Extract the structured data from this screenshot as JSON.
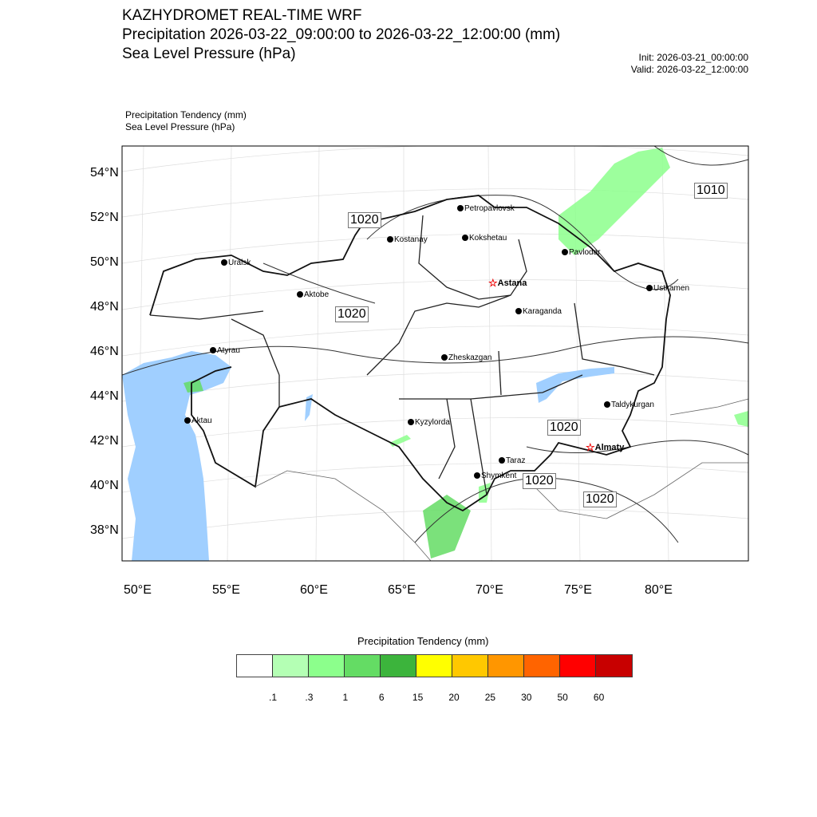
{
  "title": {
    "line1": "KAZHYDROMET REAL-TIME WRF",
    "line2": "Precipitation 2026-03-22_09:00:00 to 2026-03-22_12:00:00 (mm)",
    "line3": "Sea Level Pressure  (hPa)",
    "init": "Init: 2026-03-21_00:00:00",
    "valid": "Valid: 2026-03-22_12:00:00"
  },
  "subtitle": {
    "field1": "Precipitation Tendency   (mm)",
    "field2": "Sea Level Pressure   (hPa)"
  },
  "axes": {
    "lat_labels": [
      "54°N",
      "52°N",
      "50°N",
      "48°N",
      "46°N",
      "44°N",
      "42°N",
      "40°N",
      "38°N"
    ],
    "lon_labels": [
      "50°E",
      "55°E",
      "60°E",
      "65°E",
      "70°E",
      "75°E",
      "80°E"
    ]
  },
  "cities": [
    {
      "name": "Petropavlovsk",
      "capital": false
    },
    {
      "name": "Kokshetau",
      "capital": false
    },
    {
      "name": "Kostanay",
      "capital": false
    },
    {
      "name": "Pavlodar",
      "capital": false
    },
    {
      "name": "Uralsk",
      "capital": false
    },
    {
      "name": "Astana",
      "capital": true
    },
    {
      "name": "Aktobe",
      "capital": false
    },
    {
      "name": "Ustkamen",
      "capital": false
    },
    {
      "name": "Karaganda",
      "capital": false
    },
    {
      "name": "Atyrau",
      "capital": false
    },
    {
      "name": "Zheskazgan",
      "capital": false
    },
    {
      "name": "Aktau",
      "capital": false
    },
    {
      "name": "Taldykurgan",
      "capital": false
    },
    {
      "name": "Kyzylorda",
      "capital": false
    },
    {
      "name": "Almaty",
      "capital": true
    },
    {
      "name": "Taraz",
      "capital": false
    },
    {
      "name": "Shymkent",
      "capital": false
    }
  ],
  "isobar_labels": [
    "1010",
    "1020",
    "1020",
    "1020",
    "1020",
    "1020"
  ],
  "colorbar": {
    "title": "Precipitation Tendency (mm)",
    "colors": [
      "#ffffff",
      "#b4ffb4",
      "#8cff8c",
      "#64dc64",
      "#3cb43c",
      "#ffff00",
      "#ffc800",
      "#ff9600",
      "#ff6400",
      "#ff0000",
      "#c80000"
    ],
    "labels": [
      ".1",
      ".3",
      "1",
      "6",
      "15",
      "20",
      "25",
      "30",
      "50",
      "60"
    ]
  }
}
